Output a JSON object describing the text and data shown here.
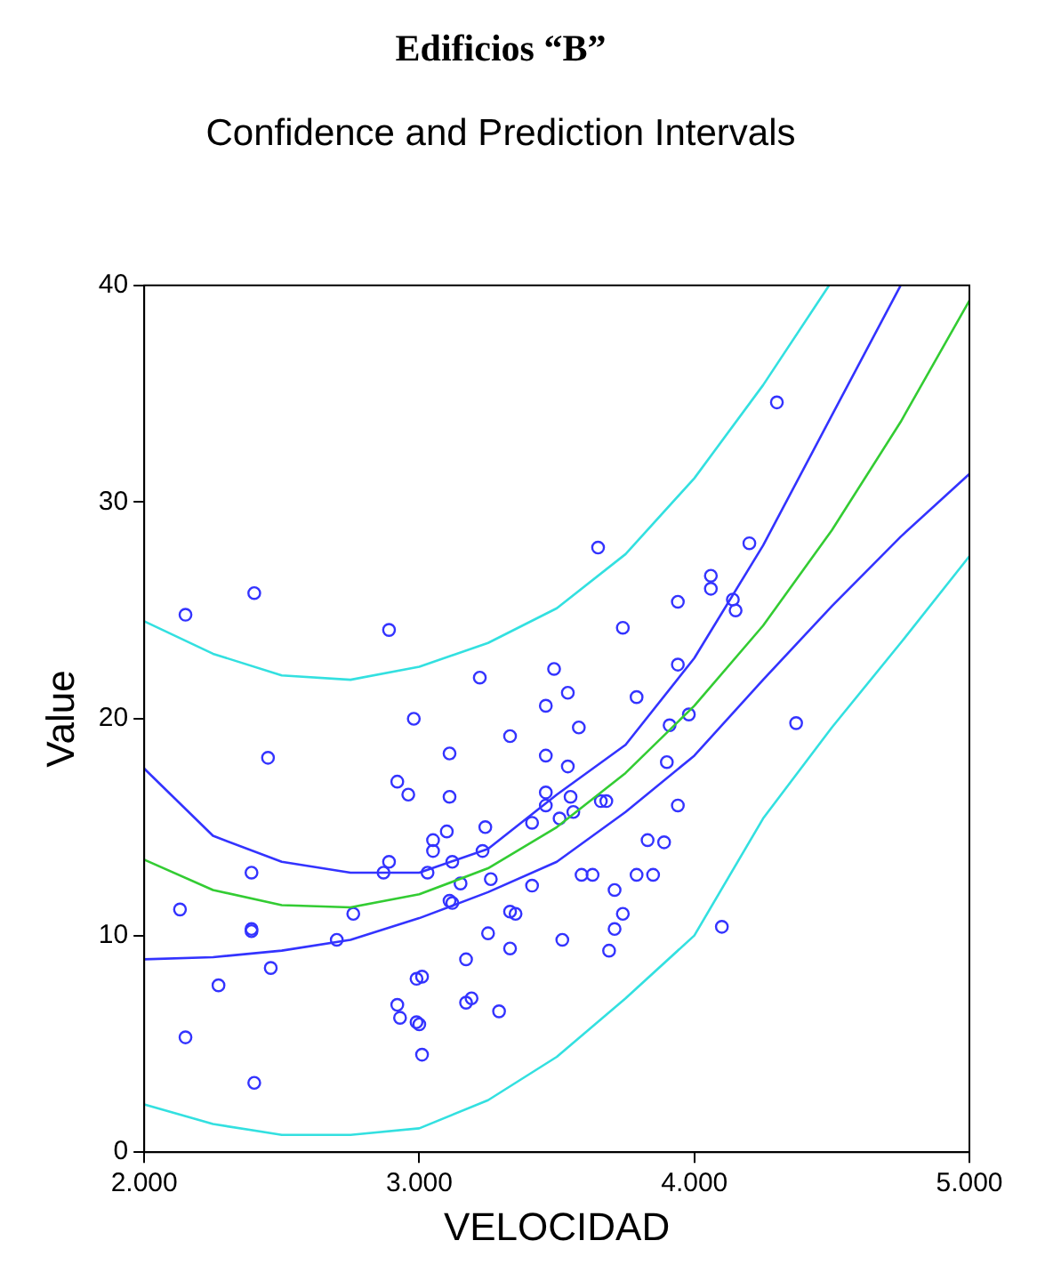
{
  "chart_data": {
    "type": "scatter",
    "title": "Edificios “B”",
    "subtitle": "Confidence and Prediction Intervals",
    "xlabel": "VELOCIDAD",
    "ylabel": "Value",
    "xlim": [
      2000,
      5000
    ],
    "xticks": [
      {
        "value": 2000,
        "label": "2.000"
      },
      {
        "value": 3000,
        "label": "3.000"
      },
      {
        "value": 4000,
        "label": "4.000"
      },
      {
        "value": 5000,
        "label": "5.000"
      }
    ],
    "ylim": [
      0,
      40
    ],
    "yticks": [
      0,
      10,
      20,
      30,
      40
    ],
    "grid": false,
    "legend": false,
    "marker": "circle",
    "series": [
      {
        "type": "line",
        "color": "#33e0e0",
        "marker": "none",
        "x": [
          2000,
          2250,
          2500,
          2750,
          3000,
          3250,
          3500,
          3750,
          4000,
          4250,
          4490
        ],
        "values": [
          24.5,
          23.0,
          22.0,
          21.8,
          22.4,
          23.5,
          25.1,
          27.6,
          31.1,
          35.4,
          40
        ]
      },
      {
        "type": "line",
        "color": "#3333ff",
        "marker": "none",
        "x": [
          2000,
          2250,
          2500,
          2750,
          3000,
          3250,
          3500,
          3750,
          4000,
          4250,
          4500,
          4750
        ],
        "values": [
          17.7,
          14.6,
          13.4,
          12.9,
          12.9,
          14.0,
          16.5,
          18.8,
          22.8,
          28.0,
          34.0,
          40
        ]
      },
      {
        "type": "line",
        "color": "#33cc33",
        "marker": "none",
        "x": [
          2000,
          2250,
          2500,
          2750,
          3000,
          3250,
          3500,
          3750,
          4000,
          4250,
          4500,
          4750,
          5000
        ],
        "values": [
          13.5,
          12.1,
          11.4,
          11.3,
          11.9,
          13.1,
          15.0,
          17.5,
          20.6,
          24.3,
          28.7,
          33.7,
          39.3
        ]
      },
      {
        "type": "line",
        "color": "#3333ff",
        "marker": "none",
        "x": [
          2000,
          2250,
          2500,
          2750,
          3000,
          3250,
          3500,
          3750,
          4000,
          4250,
          4500,
          4750,
          5000
        ],
        "values": [
          8.9,
          9.0,
          9.3,
          9.8,
          10.8,
          12.0,
          13.4,
          15.7,
          18.3,
          21.8,
          25.2,
          28.4,
          31.3
        ]
      },
      {
        "type": "line",
        "color": "#33e0e0",
        "marker": "none",
        "x": [
          2000,
          2250,
          2500,
          2750,
          3000,
          3250,
          3500,
          3750,
          4000,
          4250,
          4500,
          4750,
          5000
        ],
        "values": [
          2.2,
          1.3,
          0.8,
          0.8,
          1.1,
          2.4,
          4.4,
          7.1,
          10.0,
          15.4,
          19.6,
          23.5,
          27.5
        ]
      },
      {
        "color": "#3333ff",
        "x": [
          2150,
          2400,
          2890,
          3220,
          2980,
          3330,
          2450,
          3110,
          3460,
          2920,
          2960,
          3110,
          3460,
          3460,
          3410,
          3100,
          3240,
          3050,
          3050,
          3230,
          2890,
          2870,
          3030,
          3120,
          2390,
          3150,
          3260,
          3410,
          2130,
          2760,
          3110,
          3120,
          3330,
          3350,
          2390,
          2390,
          2700,
          3250,
          3330,
          3170,
          2460,
          2270,
          2990,
          3010,
          3170,
          3190,
          3290,
          2920,
          2930,
          2990,
          3000,
          2150,
          3010,
          2400,
          3540,
          3900,
          3550,
          3560,
          3510,
          3660,
          3680,
          3940,
          3830,
          3890,
          3590,
          3630,
          3790,
          3850,
          3710,
          3740,
          3710,
          3520,
          3690,
          4100,
          4300,
          3650,
          4200,
          4060,
          4060,
          4140,
          4150,
          3940,
          3740,
          3490,
          3540,
          3940,
          3790,
          3980,
          3580,
          3910,
          4370,
          3460
        ],
        "values": [
          24.8,
          25.8,
          24.1,
          21.9,
          20.0,
          19.2,
          18.2,
          18.4,
          18.3,
          17.1,
          16.5,
          16.4,
          16.6,
          16.0,
          15.2,
          14.8,
          15.0,
          14.4,
          13.9,
          13.9,
          13.4,
          12.9,
          12.9,
          13.4,
          12.9,
          12.4,
          12.6,
          12.3,
          11.2,
          11.0,
          11.6,
          11.5,
          11.1,
          11.0,
          10.3,
          10.2,
          9.8,
          10.1,
          9.4,
          8.9,
          8.5,
          7.7,
          8.0,
          8.1,
          6.9,
          7.1,
          6.5,
          6.8,
          6.2,
          6.0,
          5.9,
          5.3,
          4.5,
          3.2,
          17.8,
          18.0,
          16.4,
          15.7,
          15.4,
          16.2,
          16.2,
          16.0,
          14.4,
          14.3,
          12.8,
          12.8,
          12.8,
          12.8,
          12.1,
          11.0,
          10.3,
          9.8,
          9.3,
          10.4,
          34.6,
          27.9,
          28.1,
          26.6,
          26.0,
          25.5,
          25.0,
          25.4,
          24.2,
          22.3,
          21.2,
          22.5,
          21.0,
          20.2,
          19.6,
          19.7,
          19.8,
          20.6
        ]
      }
    ]
  }
}
